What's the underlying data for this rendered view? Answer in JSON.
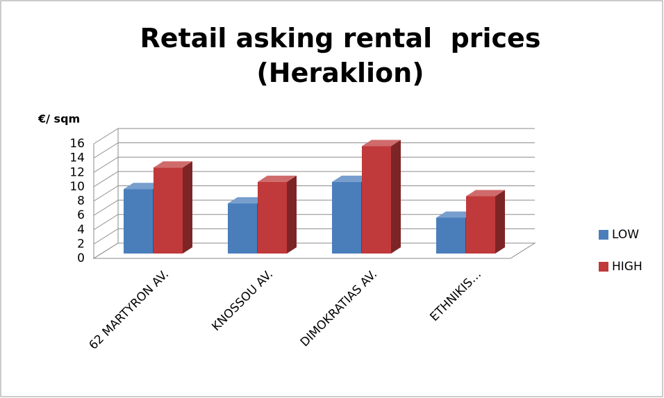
{
  "chart_data": {
    "type": "bar3d",
    "title": "Retail asking rental  prices (Heraklion)",
    "y_label": "€/ sqm",
    "categories": [
      "62 MARTYRON AV.",
      "KNOSSOU AV.",
      "DIMOKRATIAS AV.",
      "ETHNIKIS…"
    ],
    "series": [
      {
        "name": "LOW",
        "color": "#4a7ebb",
        "values": [
          9,
          7,
          10,
          5
        ]
      },
      {
        "name": "HIGH",
        "color": "#c0393b",
        "values": [
          12,
          10,
          15,
          8
        ]
      }
    ],
    "ylim": [
      0,
      16
    ],
    "yticks": [
      0,
      2,
      4,
      6,
      8,
      10,
      12,
      14,
      16
    ],
    "grid": true,
    "legend": "right"
  }
}
